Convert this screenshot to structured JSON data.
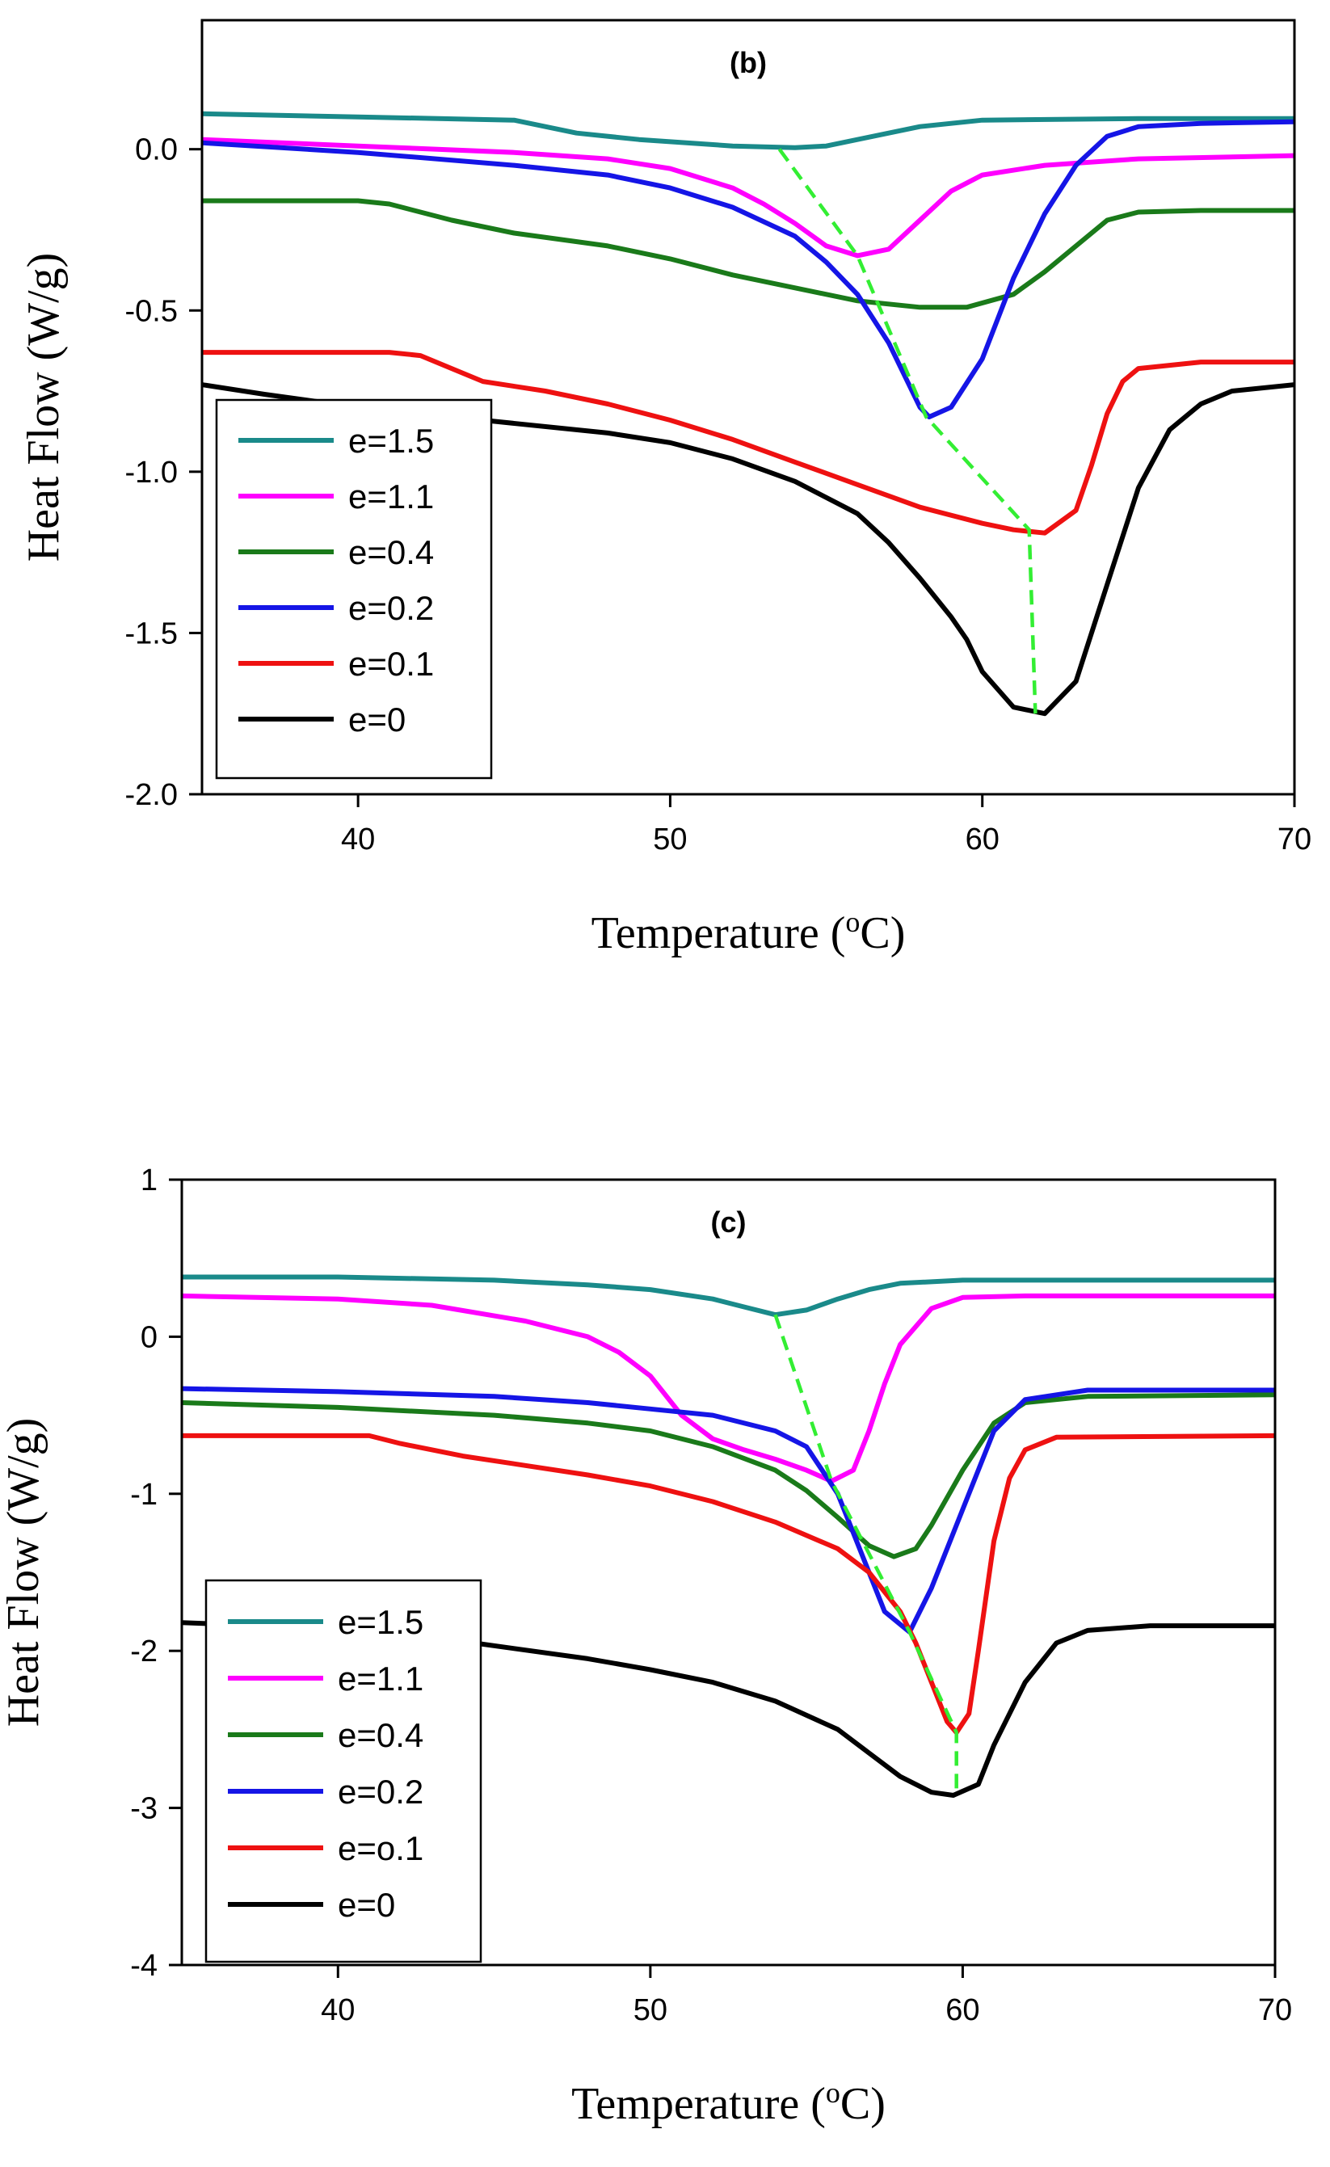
{
  "chart_data": [
    {
      "type": "line",
      "title": "(b)",
      "xlabel": "Temperature (",
      "xlabel_sup": "o",
      "xlabel_end": "C)",
      "ylabel": "Heat Flow (W/g)",
      "xlim": [
        35,
        70
      ],
      "ylim": [
        -2.0,
        0.4
      ],
      "xticks": [
        40,
        50,
        60,
        70
      ],
      "xtick_labels": [
        "40",
        "50",
        "60",
        "70"
      ],
      "yticks": [
        0.0,
        -0.5,
        -1.0,
        -1.5,
        -2.0
      ],
      "ytick_labels": [
        "0.0",
        "-0.5",
        "-1.0",
        "-1.5",
        "-2.0"
      ],
      "grid": false,
      "legend_position": "bottom-left",
      "series": [
        {
          "name": "e=1.5",
          "color": "#1a8a8a",
          "points": [
            [
              35,
              0.11
            ],
            [
              40,
              0.1
            ],
            [
              45,
              0.09
            ],
            [
              47,
              0.05
            ],
            [
              49,
              0.03
            ],
            [
              52,
              0.01
            ],
            [
              54,
              0.005
            ],
            [
              55,
              0.01
            ],
            [
              56,
              0.03
            ],
            [
              58,
              0.07
            ],
            [
              60,
              0.09
            ],
            [
              65,
              0.095
            ],
            [
              70,
              0.095
            ]
          ]
        },
        {
          "name": "e=1.1",
          "color": "#ff00ff",
          "points": [
            [
              35,
              0.03
            ],
            [
              40,
              0.01
            ],
            [
              45,
              -0.01
            ],
            [
              48,
              -0.03
            ],
            [
              50,
              -0.06
            ],
            [
              52,
              -0.12
            ],
            [
              53,
              -0.17
            ],
            [
              54,
              -0.23
            ],
            [
              55,
              -0.3
            ],
            [
              56,
              -0.33
            ],
            [
              57,
              -0.31
            ],
            [
              58,
              -0.22
            ],
            [
              59,
              -0.13
            ],
            [
              60,
              -0.08
            ],
            [
              62,
              -0.05
            ],
            [
              65,
              -0.03
            ],
            [
              70,
              -0.02
            ]
          ]
        },
        {
          "name": "e=0.4",
          "color": "#1a7a1a",
          "points": [
            [
              35,
              -0.16
            ],
            [
              40,
              -0.16
            ],
            [
              41,
              -0.17
            ],
            [
              43,
              -0.22
            ],
            [
              45,
              -0.26
            ],
            [
              48,
              -0.3
            ],
            [
              50,
              -0.34
            ],
            [
              52,
              -0.39
            ],
            [
              54,
              -0.43
            ],
            [
              56,
              -0.47
            ],
            [
              58,
              -0.49
            ],
            [
              59.5,
              -0.49
            ],
            [
              61,
              -0.45
            ],
            [
              62,
              -0.38
            ],
            [
              63,
              -0.3
            ],
            [
              64,
              -0.22
            ],
            [
              65,
              -0.195
            ],
            [
              67,
              -0.19
            ],
            [
              70,
              -0.19
            ]
          ]
        },
        {
          "name": "e=0.2",
          "color": "#1515e6",
          "points": [
            [
              35,
              0.02
            ],
            [
              40,
              -0.01
            ],
            [
              45,
              -0.05
            ],
            [
              48,
              -0.08
            ],
            [
              50,
              -0.12
            ],
            [
              52,
              -0.18
            ],
            [
              54,
              -0.27
            ],
            [
              55,
              -0.35
            ],
            [
              56,
              -0.45
            ],
            [
              57,
              -0.6
            ],
            [
              58,
              -0.8
            ],
            [
              58.3,
              -0.83
            ],
            [
              59,
              -0.8
            ],
            [
              60,
              -0.65
            ],
            [
              61,
              -0.4
            ],
            [
              62,
              -0.2
            ],
            [
              63,
              -0.05
            ],
            [
              64,
              0.04
            ],
            [
              65,
              0.07
            ],
            [
              67,
              0.08
            ],
            [
              70,
              0.085
            ]
          ]
        },
        {
          "name": "e=0.1",
          "color": "#ee1111",
          "points": [
            [
              35,
              -0.63
            ],
            [
              41,
              -0.63
            ],
            [
              42,
              -0.64
            ],
            [
              43,
              -0.68
            ],
            [
              44,
              -0.72
            ],
            [
              46,
              -0.75
            ],
            [
              48,
              -0.79
            ],
            [
              50,
              -0.84
            ],
            [
              52,
              -0.9
            ],
            [
              54,
              -0.97
            ],
            [
              56,
              -1.04
            ],
            [
              58,
              -1.11
            ],
            [
              60,
              -1.16
            ],
            [
              61,
              -1.18
            ],
            [
              62,
              -1.19
            ],
            [
              63,
              -1.12
            ],
            [
              63.5,
              -0.98
            ],
            [
              64,
              -0.82
            ],
            [
              64.5,
              -0.72
            ],
            [
              65,
              -0.68
            ],
            [
              67,
              -0.66
            ],
            [
              70,
              -0.66
            ]
          ]
        },
        {
          "name": "e=0",
          "color": "#000000",
          "points": [
            [
              35,
              -0.73
            ],
            [
              37,
              -0.76
            ],
            [
              40,
              -0.8
            ],
            [
              44,
              -0.84
            ],
            [
              48,
              -0.88
            ],
            [
              50,
              -0.91
            ],
            [
              52,
              -0.96
            ],
            [
              54,
              -1.03
            ],
            [
              56,
              -1.13
            ],
            [
              57,
              -1.22
            ],
            [
              58,
              -1.33
            ],
            [
              59,
              -1.45
            ],
            [
              59.5,
              -1.52
            ],
            [
              60,
              -1.62
            ],
            [
              61,
              -1.73
            ],
            [
              62,
              -1.75
            ],
            [
              63,
              -1.65
            ],
            [
              64,
              -1.35
            ],
            [
              65,
              -1.05
            ],
            [
              66,
              -0.87
            ],
            [
              67,
              -0.79
            ],
            [
              68,
              -0.75
            ],
            [
              70,
              -0.73
            ]
          ]
        }
      ],
      "guide_line": {
        "color": "#33ee33",
        "style": "dashed",
        "points": [
          [
            53.5,
            0.0
          ],
          [
            56,
            -0.33
          ],
          [
            58.2,
            -0.83
          ],
          [
            61.5,
            -1.18
          ],
          [
            61.7,
            -1.75
          ]
        ]
      }
    },
    {
      "type": "line",
      "title": "(c)",
      "xlabel": "Temperature (",
      "xlabel_sup": "o",
      "xlabel_end": "C)",
      "ylabel": "Heat Flow (W/g)",
      "xlim": [
        35,
        70
      ],
      "ylim": [
        -4,
        1
      ],
      "xticks": [
        40,
        50,
        60,
        70
      ],
      "xtick_labels": [
        "40",
        "50",
        "60",
        "70"
      ],
      "yticks": [
        1,
        0,
        -1,
        -2,
        -3,
        -4
      ],
      "ytick_labels": [
        "1",
        "0",
        "-1",
        "-2",
        "-3",
        "-4"
      ],
      "grid": false,
      "legend_position": "bottom-left",
      "series": [
        {
          "name": "e=1.5",
          "color": "#1a8a8a",
          "points": [
            [
              35,
              0.38
            ],
            [
              40,
              0.38
            ],
            [
              45,
              0.36
            ],
            [
              48,
              0.33
            ],
            [
              50,
              0.3
            ],
            [
              52,
              0.24
            ],
            [
              53,
              0.19
            ],
            [
              54,
              0.14
            ],
            [
              55,
              0.17
            ],
            [
              56,
              0.24
            ],
            [
              57,
              0.3
            ],
            [
              58,
              0.34
            ],
            [
              60,
              0.36
            ],
            [
              70,
              0.36
            ]
          ]
        },
        {
          "name": "e=1.1",
          "color": "#ff00ff",
          "points": [
            [
              35,
              0.26
            ],
            [
              40,
              0.24
            ],
            [
              43,
              0.2
            ],
            [
              46,
              0.1
            ],
            [
              48,
              0.0
            ],
            [
              49,
              -0.1
            ],
            [
              50,
              -0.25
            ],
            [
              51,
              -0.5
            ],
            [
              52,
              -0.65
            ],
            [
              53,
              -0.72
            ],
            [
              54,
              -0.78
            ],
            [
              55,
              -0.85
            ],
            [
              55.8,
              -0.92
            ],
            [
              56.5,
              -0.85
            ],
            [
              57,
              -0.6
            ],
            [
              57.5,
              -0.3
            ],
            [
              58,
              -0.05
            ],
            [
              59,
              0.18
            ],
            [
              60,
              0.25
            ],
            [
              62,
              0.26
            ],
            [
              70,
              0.26
            ]
          ]
        },
        {
          "name": "e=0.4",
          "color": "#1a7a1a",
          "points": [
            [
              35,
              -0.42
            ],
            [
              40,
              -0.45
            ],
            [
              45,
              -0.5
            ],
            [
              48,
              -0.55
            ],
            [
              50,
              -0.6
            ],
            [
              52,
              -0.7
            ],
            [
              54,
              -0.85
            ],
            [
              55,
              -0.98
            ],
            [
              56,
              -1.15
            ],
            [
              57,
              -1.33
            ],
            [
              57.8,
              -1.4
            ],
            [
              58.5,
              -1.35
            ],
            [
              59,
              -1.2
            ],
            [
              60,
              -0.85
            ],
            [
              61,
              -0.55
            ],
            [
              62,
              -0.42
            ],
            [
              64,
              -0.38
            ],
            [
              70,
              -0.37
            ]
          ]
        },
        {
          "name": "e=0.2",
          "color": "#1515e6",
          "points": [
            [
              35,
              -0.33
            ],
            [
              40,
              -0.35
            ],
            [
              45,
              -0.38
            ],
            [
              48,
              -0.42
            ],
            [
              50,
              -0.46
            ],
            [
              52,
              -0.5
            ],
            [
              54,
              -0.6
            ],
            [
              55,
              -0.7
            ],
            [
              56,
              -1.0
            ],
            [
              57,
              -1.5
            ],
            [
              57.5,
              -1.75
            ],
            [
              58.3,
              -1.88
            ],
            [
              59,
              -1.6
            ],
            [
              60,
              -1.1
            ],
            [
              61,
              -0.6
            ],
            [
              62,
              -0.4
            ],
            [
              64,
              -0.34
            ],
            [
              70,
              -0.34
            ]
          ]
        },
        {
          "name": "e=o.1",
          "color": "#ee1111",
          "points": [
            [
              35,
              -0.63
            ],
            [
              41,
              -0.63
            ],
            [
              42,
              -0.68
            ],
            [
              44,
              -0.76
            ],
            [
              46,
              -0.82
            ],
            [
              48,
              -0.88
            ],
            [
              50,
              -0.95
            ],
            [
              52,
              -1.05
            ],
            [
              54,
              -1.18
            ],
            [
              56,
              -1.35
            ],
            [
              57,
              -1.5
            ],
            [
              58,
              -1.75
            ],
            [
              58.5,
              -1.95
            ],
            [
              59,
              -2.2
            ],
            [
              59.5,
              -2.45
            ],
            [
              59.8,
              -2.52
            ],
            [
              60.2,
              -2.4
            ],
            [
              60.5,
              -2.0
            ],
            [
              61,
              -1.3
            ],
            [
              61.5,
              -0.9
            ],
            [
              62,
              -0.72
            ],
            [
              63,
              -0.64
            ],
            [
              70,
              -0.63
            ]
          ]
        },
        {
          "name": "e=0",
          "color": "#000000",
          "points": [
            [
              35,
              -1.82
            ],
            [
              40,
              -1.86
            ],
            [
              44,
              -1.94
            ],
            [
              48,
              -2.05
            ],
            [
              50,
              -2.12
            ],
            [
              52,
              -2.2
            ],
            [
              54,
              -2.32
            ],
            [
              56,
              -2.5
            ],
            [
              57,
              -2.65
            ],
            [
              58,
              -2.8
            ],
            [
              59,
              -2.9
            ],
            [
              59.7,
              -2.92
            ],
            [
              60.5,
              -2.85
            ],
            [
              61,
              -2.6
            ],
            [
              62,
              -2.2
            ],
            [
              63,
              -1.95
            ],
            [
              64,
              -1.87
            ],
            [
              66,
              -1.84
            ],
            [
              70,
              -1.84
            ]
          ]
        }
      ],
      "guide_line": {
        "color": "#33ee33",
        "style": "dashed",
        "points": [
          [
            54,
            0.14
          ],
          [
            55.8,
            -0.92
          ],
          [
            58.3,
            -1.88
          ],
          [
            59.8,
            -2.52
          ],
          [
            59.8,
            -2.92
          ]
        ]
      }
    }
  ]
}
